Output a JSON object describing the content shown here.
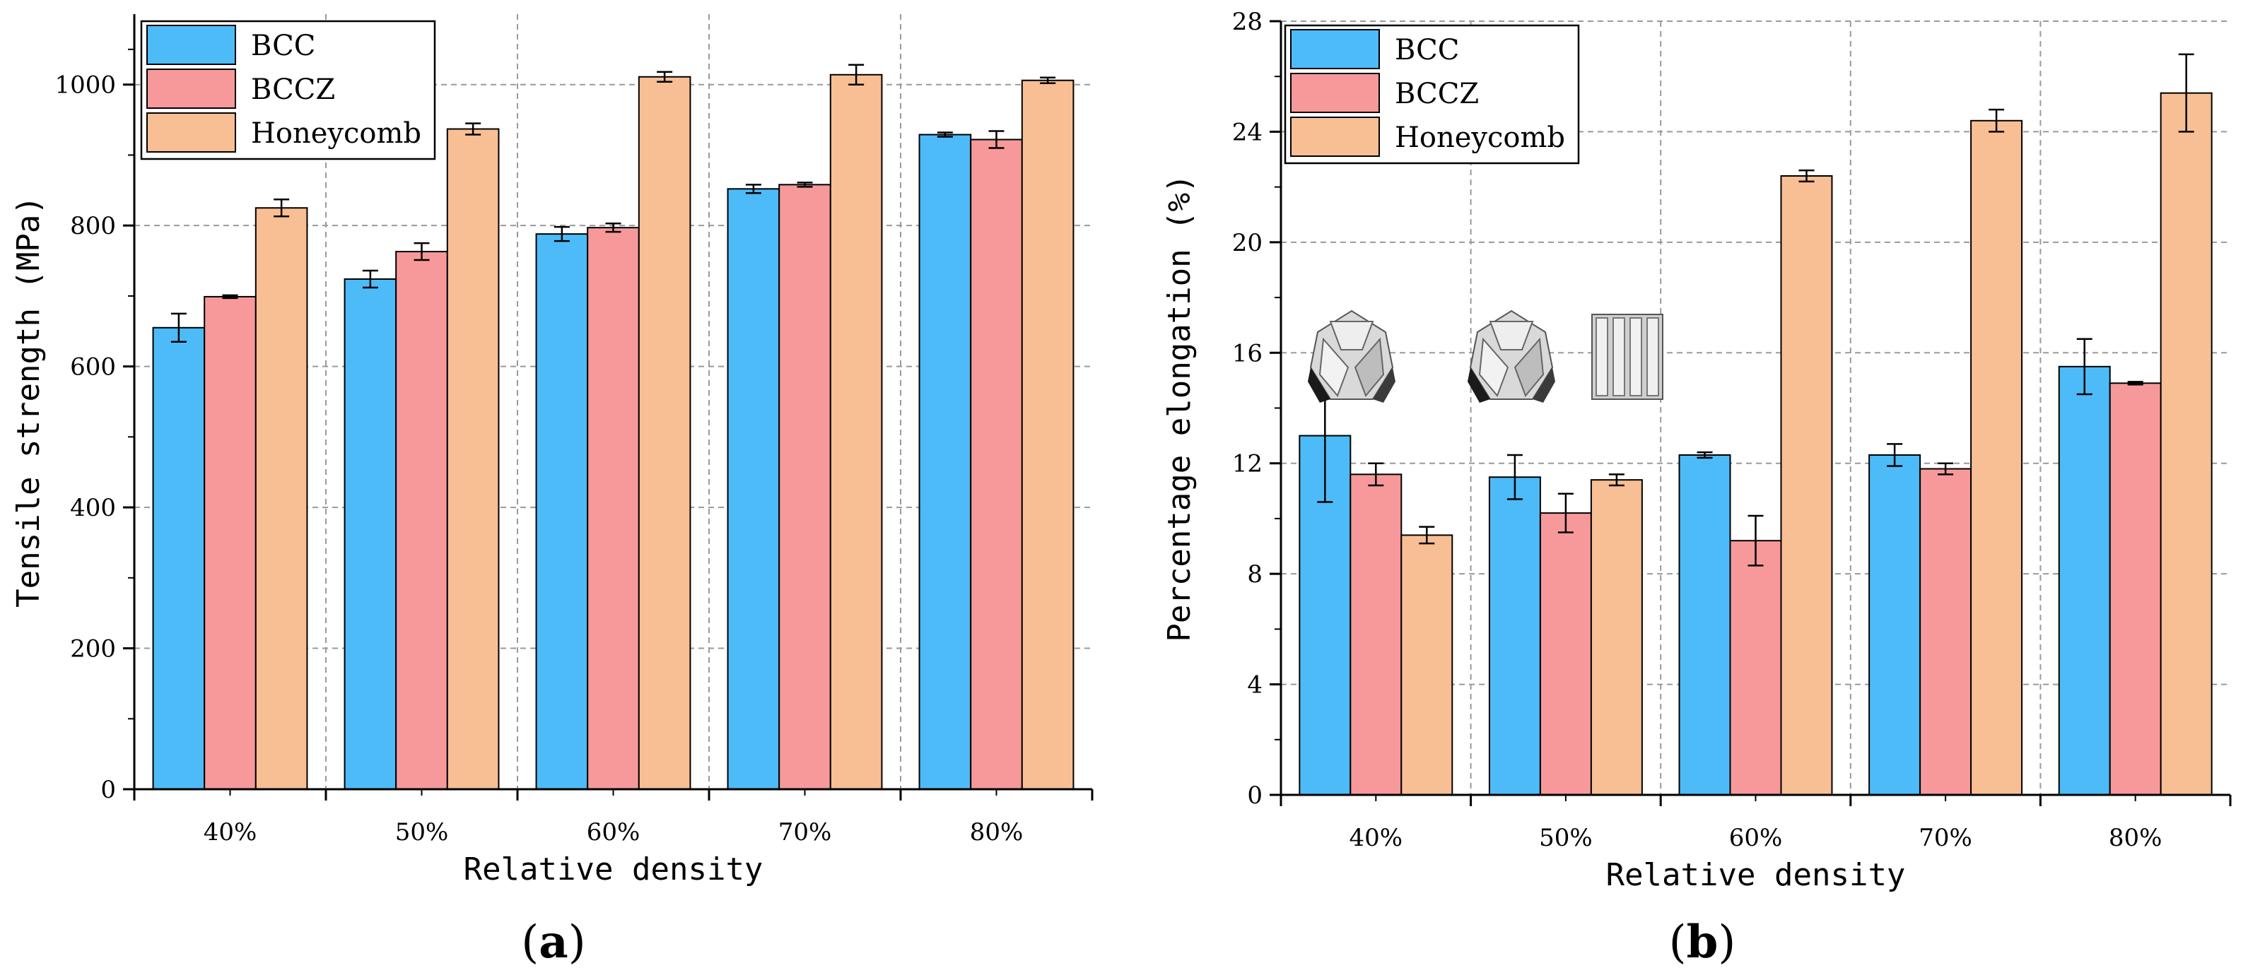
{
  "figure": {
    "panel_a_label": "a",
    "panel_b_label": "b"
  },
  "chart_data": [
    {
      "type": "bar",
      "panel": "a",
      "title": "",
      "xlabel": "Relative density",
      "ylabel": "Tensile strength (MPa)",
      "categories": [
        "40%",
        "50%",
        "60%",
        "70%",
        "80%"
      ],
      "ylim": [
        0,
        1100
      ],
      "yticks": [
        0,
        200,
        400,
        600,
        800,
        1000
      ],
      "ytick_labels": [
        "0",
        "200",
        "400",
        "600",
        "800",
        "1000"
      ],
      "grid": true,
      "legend_position": "top-left",
      "series": [
        {
          "name": "BCC",
          "color": "#4DBBF7",
          "values": [
            655,
            724,
            788,
            852,
            929
          ],
          "errors": [
            20,
            12,
            10,
            6,
            3
          ]
        },
        {
          "name": "BCCZ",
          "color": "#F7999A",
          "values": [
            699,
            763,
            797,
            858,
            922
          ],
          "errors": [
            2,
            12,
            6,
            3,
            12
          ]
        },
        {
          "name": "Honeycomb",
          "color": "#F8BF94",
          "values": [
            825,
            937,
            1011,
            1014,
            1006
          ],
          "errors": [
            12,
            8,
            7,
            14,
            4
          ]
        }
      ]
    },
    {
      "type": "bar",
      "panel": "b",
      "title": "",
      "xlabel": "Relative density",
      "ylabel": "Percentage elongation (%)",
      "categories": [
        "40%",
        "50%",
        "60%",
        "70%",
        "80%"
      ],
      "ylim": [
        0,
        28
      ],
      "yticks": [
        0,
        4,
        8,
        12,
        16,
        20,
        24,
        28
      ],
      "ytick_labels": [
        "0",
        "4",
        "8",
        "12",
        "16",
        "20",
        "24",
        "28"
      ],
      "grid": true,
      "legend_position": "top-left",
      "series": [
        {
          "name": "BCC",
          "color": "#4DBBF7",
          "values": [
            13.0,
            11.5,
            12.3,
            12.3,
            15.5
          ],
          "errors": [
            2.4,
            0.8,
            0.1,
            0.4,
            1.0
          ]
        },
        {
          "name": "BCCZ",
          "color": "#F7999A",
          "values": [
            11.6,
            10.2,
            9.2,
            11.8,
            14.9
          ],
          "errors": [
            0.4,
            0.7,
            0.9,
            0.2,
            0.05
          ]
        },
        {
          "name": "Honeycomb",
          "color": "#F8BF94",
          "values": [
            9.4,
            11.4,
            22.4,
            24.4,
            25.4
          ],
          "errors": [
            0.3,
            0.2,
            0.2,
            0.4,
            1.4
          ]
        }
      ]
    }
  ]
}
